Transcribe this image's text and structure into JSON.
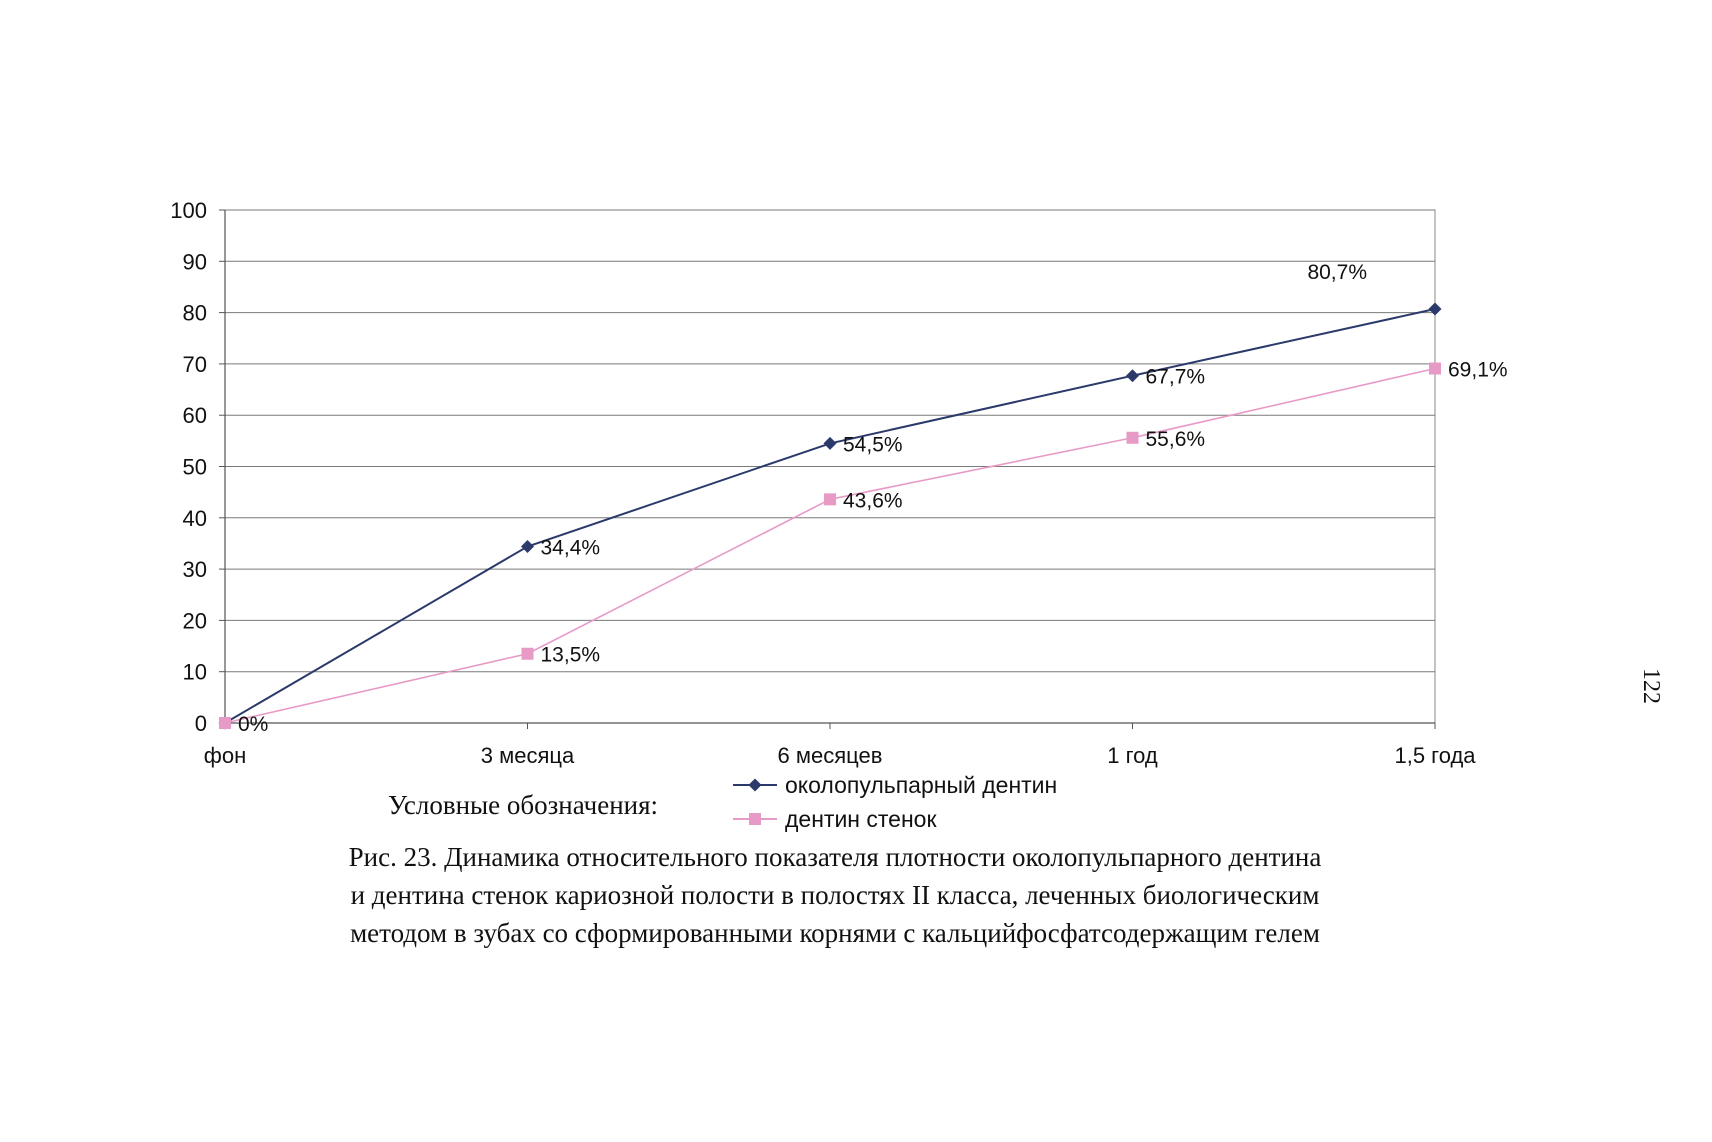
{
  "chart_data": {
    "type": "line",
    "categories": [
      "фон",
      "3 месяца",
      "6 месяцев",
      "1 год",
      "1,5 года"
    ],
    "ylim": [
      0,
      100
    ],
    "yticks": [
      0,
      10,
      20,
      30,
      40,
      50,
      60,
      70,
      80,
      90,
      100
    ],
    "grid": true,
    "series": [
      {
        "name": "околопульпарный дентин",
        "values": [
          0,
          34.4,
          54.5,
          67.7,
          80.7
        ],
        "labels": [
          "",
          "34,4%",
          "54,5%",
          "67,7%",
          "80,7%"
        ],
        "color": "#2b3a6b",
        "marker": "diamond"
      },
      {
        "name": "дентин стенок",
        "values": [
          0,
          13.5,
          43.6,
          55.6,
          69.1
        ],
        "labels": [
          "0%",
          "13,5%",
          "43,6%",
          "55,6%",
          "69,1%"
        ],
        "color": "#e89ac6",
        "marker": "square"
      }
    ]
  },
  "legend": {
    "title": "Условные обозначения:"
  },
  "caption": {
    "line1": "Рис. 23.  Динамика относительного показателя плотности околопульпарного дентина",
    "line2": "и дентина стенок кариозной полости в полостях II класса, леченных биологическим",
    "line3": "методом в зубах со сформированными корнями с кальцийфосфатсодержащим гелем"
  },
  "page_number": "122"
}
